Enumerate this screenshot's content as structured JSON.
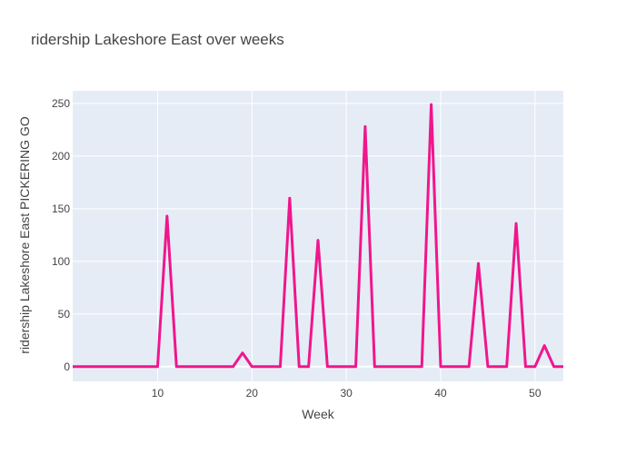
{
  "chart_data": {
    "type": "line",
    "title": "ridership Lakeshore East over weeks",
    "xlabel": "Week",
    "ylabel": "ridership Lakeshore East PICKERING GO",
    "xlim": [
      1,
      53
    ],
    "ylim": [
      -14,
      262
    ],
    "xticks": [
      10,
      20,
      30,
      40,
      50
    ],
    "yticks": [
      0,
      50,
      100,
      150,
      200,
      250
    ],
    "grid": true,
    "legend": "none",
    "colors": {
      "line": "#f0168c",
      "plot_bg": "#e5ecf6",
      "grid": "#ffffff",
      "text": "#444444"
    },
    "series": [
      {
        "x": [
          1,
          2,
          3,
          4,
          5,
          6,
          7,
          8,
          9,
          10,
          11,
          12,
          13,
          14,
          15,
          16,
          17,
          18,
          19,
          20,
          21,
          22,
          23,
          24,
          25,
          26,
          27,
          28,
          29,
          30,
          31,
          32,
          33,
          34,
          35,
          36,
          37,
          38,
          39,
          40,
          41,
          42,
          43,
          44,
          45,
          46,
          47,
          48,
          49,
          50,
          51,
          52,
          53
        ],
        "values": [
          0,
          0,
          0,
          0,
          0,
          0,
          0,
          0,
          0,
          0,
          143,
          0,
          0,
          0,
          0,
          0,
          0,
          0,
          13,
          0,
          0,
          0,
          0,
          160,
          0,
          0,
          120,
          0,
          0,
          0,
          0,
          228,
          0,
          0,
          0,
          0,
          0,
          0,
          249,
          0,
          0,
          0,
          0,
          98,
          0,
          0,
          0,
          136,
          0,
          0,
          20,
          0,
          0
        ]
      }
    ]
  }
}
